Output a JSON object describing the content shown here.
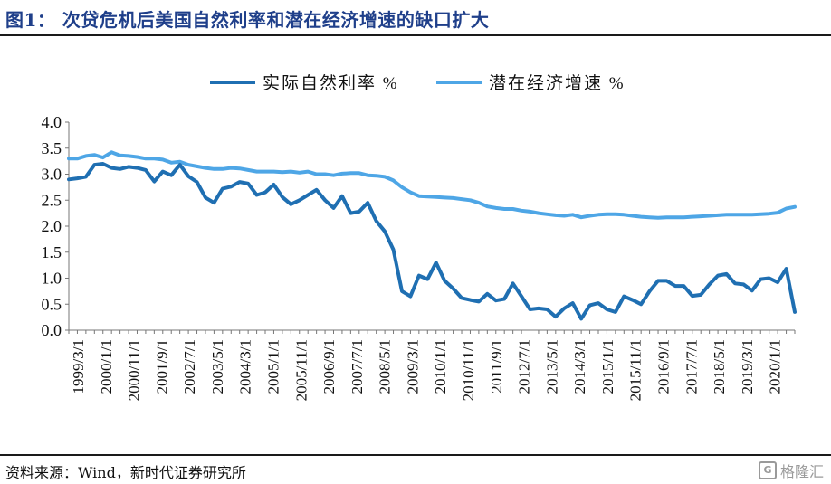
{
  "title": "图1：   次贷危机后美国自然利率和潜在经济增速的缺口扩大",
  "source": "资料来源：Wind，新时代证券研究所",
  "watermark": "格隆汇",
  "chart_data": {
    "type": "line",
    "legend_position": "top-center",
    "ylim": [
      0,
      4.0
    ],
    "y_ticks": [
      "0.0",
      "0.5",
      "1.0",
      "1.5",
      "2.0",
      "2.5",
      "3.0",
      "3.5",
      "4.0"
    ],
    "x_ticks": [
      "1999/3/1",
      "2000/1/1",
      "2000/11/1",
      "2001/9/1",
      "2002/7/1",
      "2003/5/1",
      "2004/3/1",
      "2005/1/1",
      "2005/11/1",
      "2006/9/1",
      "2007/7/1",
      "2008/5/1",
      "2009/3/1",
      "2010/1/1",
      "2010/11/1",
      "2011/9/1",
      "2012/7/1",
      "2013/5/1",
      "2014/3/1",
      "2015/1/1",
      "2015/11/1",
      "2016/9/1",
      "2017/7/1",
      "2018/5/1",
      "2019/3/1",
      "2020/1/1"
    ],
    "x": [
      "1999/1",
      "1999/2",
      "1999/3",
      "1999/4",
      "2000/1",
      "2000/2",
      "2000/3",
      "2000/4",
      "2001/1",
      "2001/2",
      "2001/3",
      "2001/4",
      "2002/1",
      "2002/2",
      "2002/3",
      "2002/4",
      "2003/1",
      "2003/2",
      "2003/3",
      "2003/4",
      "2004/1",
      "2004/2",
      "2004/3",
      "2004/4",
      "2005/1",
      "2005/2",
      "2005/3",
      "2005/4",
      "2006/1",
      "2006/2",
      "2006/3",
      "2006/4",
      "2007/1",
      "2007/2",
      "2007/3",
      "2007/4",
      "2008/1",
      "2008/2",
      "2008/3",
      "2008/4",
      "2009/1",
      "2009/2",
      "2009/3",
      "2009/4",
      "2010/1",
      "2010/2",
      "2010/3",
      "2010/4",
      "2011/1",
      "2011/2",
      "2011/3",
      "2011/4",
      "2012/1",
      "2012/2",
      "2012/3",
      "2012/4",
      "2013/1",
      "2013/2",
      "2013/3",
      "2013/4",
      "2014/1",
      "2014/2",
      "2014/3",
      "2014/4",
      "2015/1",
      "2015/2",
      "2015/3",
      "2015/4",
      "2016/1",
      "2016/2",
      "2016/3",
      "2016/4",
      "2017/1",
      "2017/2",
      "2017/3",
      "2017/4",
      "2018/1",
      "2018/2",
      "2018/3",
      "2018/4",
      "2019/1",
      "2019/2",
      "2019/3",
      "2019/4",
      "2020/1",
      "2020/2"
    ],
    "series": [
      {
        "name": "实际自然利率 %",
        "color": "#1f6fb2",
        "values": [
          2.9,
          2.92,
          2.95,
          3.18,
          3.2,
          3.12,
          3.1,
          3.14,
          3.12,
          3.08,
          2.86,
          3.05,
          2.98,
          3.18,
          2.96,
          2.85,
          2.55,
          2.45,
          2.72,
          2.76,
          2.85,
          2.82,
          2.6,
          2.65,
          2.8,
          2.56,
          2.42,
          2.5,
          2.6,
          2.7,
          2.5,
          2.35,
          2.58,
          2.25,
          2.28,
          2.45,
          2.1,
          1.9,
          1.55,
          0.75,
          0.65,
          1.05,
          0.98,
          1.3,
          0.95,
          0.8,
          0.62,
          0.58,
          0.55,
          0.7,
          0.57,
          0.6,
          0.9,
          0.65,
          0.4,
          0.42,
          0.4,
          0.26,
          0.42,
          0.52,
          0.22,
          0.48,
          0.52,
          0.4,
          0.35,
          0.65,
          0.58,
          0.5,
          0.75,
          0.95,
          0.95,
          0.85,
          0.85,
          0.66,
          0.68,
          0.88,
          1.05,
          1.08,
          0.9,
          0.88,
          0.76,
          0.98,
          1.0,
          0.92,
          1.18,
          0.35
        ]
      },
      {
        "name": "潜在经济增速 %",
        "color": "#4ea6e6",
        "values": [
          3.3,
          3.3,
          3.35,
          3.37,
          3.32,
          3.42,
          3.36,
          3.35,
          3.33,
          3.3,
          3.3,
          3.28,
          3.22,
          3.24,
          3.18,
          3.15,
          3.12,
          3.1,
          3.1,
          3.12,
          3.11,
          3.08,
          3.05,
          3.05,
          3.05,
          3.04,
          3.05,
          3.03,
          3.05,
          3.0,
          3.0,
          2.98,
          3.01,
          3.02,
          3.02,
          2.98,
          2.97,
          2.95,
          2.88,
          2.75,
          2.65,
          2.58,
          2.57,
          2.56,
          2.55,
          2.54,
          2.52,
          2.5,
          2.45,
          2.38,
          2.35,
          2.33,
          2.33,
          2.3,
          2.28,
          2.25,
          2.23,
          2.21,
          2.2,
          2.22,
          2.17,
          2.2,
          2.22,
          2.23,
          2.23,
          2.22,
          2.2,
          2.18,
          2.17,
          2.16,
          2.17,
          2.17,
          2.17,
          2.18,
          2.19,
          2.2,
          2.21,
          2.22,
          2.22,
          2.22,
          2.22,
          2.23,
          2.24,
          2.26,
          2.34,
          2.37
        ]
      }
    ]
  }
}
